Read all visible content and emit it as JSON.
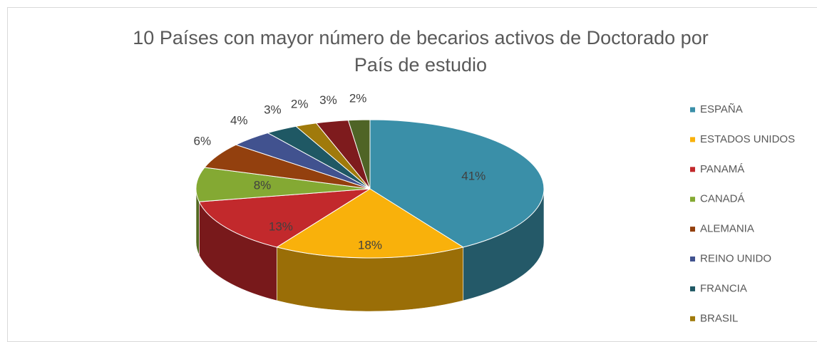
{
  "chart_data": {
    "type": "pie",
    "title": "10 Países con mayor número de becarios activos de Doctorado por País de estudio",
    "categories": [
      "ESPAÑA",
      "ESTADOS UNIDOS",
      "PANAMÁ",
      "CANADÁ",
      "ALEMANIA",
      "REINO UNIDO",
      "FRANCIA",
      "BRASIL",
      null,
      null
    ],
    "values": [
      41,
      18,
      13,
      8,
      6,
      4,
      3,
      2,
      3,
      2
    ],
    "value_labels": [
      "41%",
      "18%",
      "13%",
      "8%",
      "6%",
      "4%",
      "3%",
      "2%",
      "3%",
      "2%"
    ],
    "colors": [
      "#3a8fa8",
      "#f9b10b",
      "#c2292c",
      "#84a933",
      "#93400e",
      "#41528f",
      "#1f5864",
      "#a07a0b",
      "#7e1b1d",
      "#4f6426"
    ],
    "legend": "right"
  }
}
